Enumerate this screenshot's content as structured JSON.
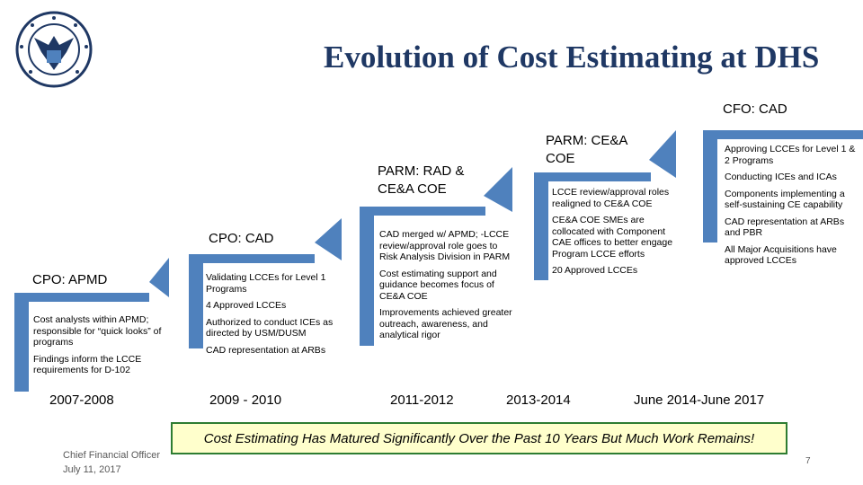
{
  "colors": {
    "title": "#1F3864",
    "step": "#4F81BD",
    "banner_border": "#2E7D32",
    "banner_fill": "#FFFFCC"
  },
  "header": {
    "seal": "seal-icon",
    "title": "Evolution of Cost Estimating at DHS"
  },
  "stages": [
    {
      "label": "CPO: APMD",
      "period": "2007-2008",
      "bullets": [
        "Cost analysts within APMD; responsible for “quick looks” of programs",
        "Findings inform the LCCE requirements for D-102"
      ]
    },
    {
      "label": "CPO: CAD",
      "period": "2009 - 2010",
      "bullets": [
        "Validating LCCEs for Level 1 Programs",
        "4 Approved LCCEs",
        "Authorized to conduct ICEs as directed by USM/DUSM",
        "CAD representation at ARBs"
      ]
    },
    {
      "label": "PARM:  RAD & CE&A COE",
      "period": "2011-2012",
      "bullets": [
        "CAD merged w/ APMD; -LCCE review/approval role goes to Risk Analysis Division in PARM",
        "Cost estimating support and guidance becomes focus of CE&A COE",
        "Improvements achieved greater outreach, awareness, and analytical rigor"
      ]
    },
    {
      "label": "PARM:  CE&A COE",
      "period": "2013-2014",
      "bullets": [
        "LCCE review/approval roles realigned to CE&A COE",
        "CE&A COE SMEs are collocated with Component CAE offices to better engage Program LCCE efforts",
        "20 Approved LCCEs"
      ]
    },
    {
      "label": "CFO: CAD",
      "period": "June 2014-June 2017",
      "bullets": [
        "Approving LCCEs for Level 1 & 2 Programs",
        "Conducting ICEs and ICAs",
        "Components implementing a self-sustaining CE capability",
        "CAD representation at ARBs and PBR",
        "All Major Acquisitions have approved LCCEs"
      ]
    }
  ],
  "banner": "Cost Estimating Has Matured Significantly Over the Past 10 Years But Much Work Remains!",
  "footer": {
    "line1": "Chief Financial Officer",
    "line2": "July 11, 2017"
  },
  "page_number": "7"
}
